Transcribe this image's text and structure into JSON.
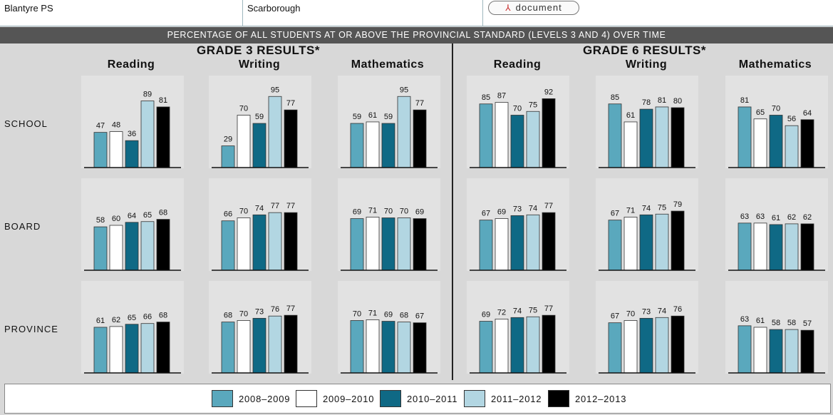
{
  "header": {
    "school_name": "Blantyre PS",
    "municipality": "Scarborough",
    "document_button": "document",
    "document_icon": "pdf-icon"
  },
  "banner": "PERCENTAGE OF ALL STUDENTS AT OR ABOVE THE PROVINCIAL STANDARD (LEVELS 3 AND 4) OVER TIME",
  "grades": [
    {
      "title": "GRADE 3 RESULTS*",
      "subjects": [
        "Reading",
        "Writing",
        "Mathematics"
      ]
    },
    {
      "title": "GRADE 6 RESULTS*",
      "subjects": [
        "Reading",
        "Writing",
        "Mathematics"
      ]
    }
  ],
  "row_labels": [
    "SCHOOL",
    "BOARD",
    "PROVINCE"
  ],
  "legend": [
    {
      "label": "2008–2009",
      "color": "#5aa8bd"
    },
    {
      "label": "2009–2010",
      "color": "#ffffff"
    },
    {
      "label": "2010–2011",
      "color": "#0f6985"
    },
    {
      "label": "2011–2012",
      "color": "#b2d6e2"
    },
    {
      "label": "2012–2013",
      "color": "#000000"
    }
  ],
  "chart_data": {
    "type": "bar",
    "categories": [
      "2008–2009",
      "2009–2010",
      "2010–2011",
      "2011–2012",
      "2012–2013"
    ],
    "ylim": [
      0,
      100
    ],
    "panels": [
      {
        "grade": "GRADE 3 RESULTS*",
        "subject": "Reading",
        "level": "SCHOOL",
        "values": [
          47,
          48,
          36,
          89,
          81
        ]
      },
      {
        "grade": "GRADE 3 RESULTS*",
        "subject": "Writing",
        "level": "SCHOOL",
        "values": [
          29,
          70,
          59,
          95,
          77
        ]
      },
      {
        "grade": "GRADE 3 RESULTS*",
        "subject": "Mathematics",
        "level": "SCHOOL",
        "values": [
          59,
          61,
          59,
          95,
          77
        ]
      },
      {
        "grade": "GRADE 6 RESULTS*",
        "subject": "Reading",
        "level": "SCHOOL",
        "values": [
          85,
          87,
          70,
          75,
          92
        ]
      },
      {
        "grade": "GRADE 6 RESULTS*",
        "subject": "Writing",
        "level": "SCHOOL",
        "values": [
          85,
          61,
          78,
          81,
          80
        ]
      },
      {
        "grade": "GRADE 6 RESULTS*",
        "subject": "Mathematics",
        "level": "SCHOOL",
        "values": [
          81,
          65,
          70,
          56,
          64
        ]
      },
      {
        "grade": "GRADE 3 RESULTS*",
        "subject": "Reading",
        "level": "BOARD",
        "values": [
          58,
          60,
          64,
          65,
          68
        ]
      },
      {
        "grade": "GRADE 3 RESULTS*",
        "subject": "Writing",
        "level": "BOARD",
        "values": [
          66,
          70,
          74,
          77,
          77
        ]
      },
      {
        "grade": "GRADE 3 RESULTS*",
        "subject": "Mathematics",
        "level": "BOARD",
        "values": [
          69,
          71,
          70,
          70,
          69
        ]
      },
      {
        "grade": "GRADE 6 RESULTS*",
        "subject": "Reading",
        "level": "BOARD",
        "values": [
          67,
          69,
          73,
          74,
          77
        ]
      },
      {
        "grade": "GRADE 6 RESULTS*",
        "subject": "Writing",
        "level": "BOARD",
        "values": [
          67,
          71,
          74,
          75,
          79
        ]
      },
      {
        "grade": "GRADE 6 RESULTS*",
        "subject": "Mathematics",
        "level": "BOARD",
        "values": [
          63,
          63,
          61,
          62,
          62
        ]
      },
      {
        "grade": "GRADE 3 RESULTS*",
        "subject": "Reading",
        "level": "PROVINCE",
        "values": [
          61,
          62,
          65,
          66,
          68
        ]
      },
      {
        "grade": "GRADE 3 RESULTS*",
        "subject": "Writing",
        "level": "PROVINCE",
        "values": [
          68,
          70,
          73,
          76,
          77
        ]
      },
      {
        "grade": "GRADE 3 RESULTS*",
        "subject": "Mathematics",
        "level": "PROVINCE",
        "values": [
          70,
          71,
          69,
          68,
          67
        ]
      },
      {
        "grade": "GRADE 6 RESULTS*",
        "subject": "Reading",
        "level": "PROVINCE",
        "values": [
          69,
          72,
          74,
          75,
          77
        ]
      },
      {
        "grade": "GRADE 6 RESULTS*",
        "subject": "Writing",
        "level": "PROVINCE",
        "values": [
          67,
          70,
          73,
          74,
          76
        ]
      },
      {
        "grade": "GRADE 6 RESULTS*",
        "subject": "Mathematics",
        "level": "PROVINCE",
        "values": [
          63,
          61,
          58,
          58,
          57
        ]
      }
    ]
  }
}
